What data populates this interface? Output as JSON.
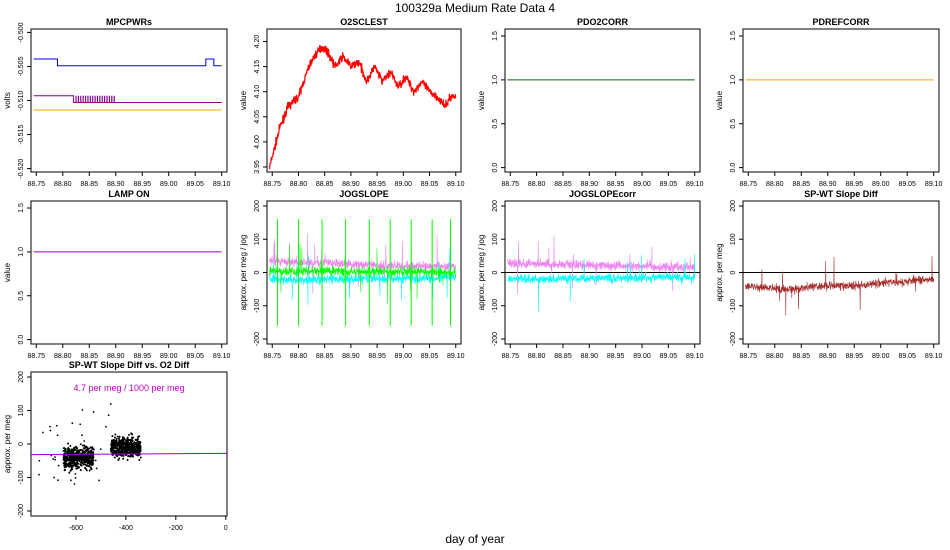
{
  "page": {
    "title": "100329a   Medium Rate Data 4",
    "xlabel": "day of year"
  },
  "colors": {
    "blue": "#0000ff",
    "purple": "#8b008b",
    "orange": "#ffa500",
    "red": "#ff0000",
    "darkgreen": "#006400",
    "darkviolet": "#9400d3",
    "violet": "#ee82ee",
    "cyan": "#00ffff",
    "green": "#00ff00",
    "brown": "#a52a2a",
    "magenta": "#c000c0"
  },
  "chart_data": [
    {
      "id": "mpcpwrs",
      "type": "line",
      "title": "MPCPWRs",
      "ylabel": "volts",
      "xlim": [
        88.74,
        89.11
      ],
      "ylim": [
        -0.5205,
        -0.4995
      ],
      "xticks": [
        "88.75",
        "88.80",
        "88.85",
        "88.90",
        "88.95",
        "89.00",
        "89.05",
        "89.10"
      ],
      "yticks": [
        "-0.520",
        "-0.515",
        "-0.510",
        "-0.505",
        "-0.500"
      ],
      "series": [
        {
          "name": "blue",
          "color": "blue",
          "x": [
            88.745,
            88.79,
            88.79,
            88.795,
            88.795,
            89.07,
            89.07,
            89.085,
            89.085,
            89.1
          ],
          "y": [
            -0.5039,
            -0.5039,
            -0.5049,
            -0.5049,
            -0.5049,
            -0.5049,
            -0.5039,
            -0.5039,
            -0.5049,
            -0.5049
          ]
        },
        {
          "name": "purple",
          "color": "purple",
          "x": [
            88.745,
            88.82,
            88.82,
            88.905,
            88.905,
            89.1
          ],
          "y": [
            -0.5093,
            -0.5093,
            -0.5103,
            -0.5103,
            -0.5103,
            -0.5103
          ]
        },
        {
          "name": "orange",
          "color": "orange",
          "x": [
            88.745,
            89.1
          ],
          "y": [
            -0.5114,
            -0.5114
          ]
        }
      ]
    },
    {
      "id": "o2sclest",
      "type": "line",
      "title": "O2SCLEST",
      "ylabel": "value",
      "xlim": [
        88.74,
        89.11
      ],
      "ylim": [
        3.94,
        4.225
      ],
      "xticks": [
        "88.75",
        "88.80",
        "88.85",
        "88.90",
        "88.95",
        "89.00",
        "89.05",
        "89.10"
      ],
      "yticks": [
        "3.95",
        "4.00",
        "4.05",
        "4.10",
        "4.15",
        "4.20"
      ],
      "series": [
        {
          "name": "o2",
          "color": "red",
          "x": [
            88.745,
            88.755,
            88.765,
            88.78,
            88.8,
            88.82,
            88.83,
            88.845,
            88.855,
            88.87,
            88.885,
            88.9,
            88.915,
            88.93,
            88.945,
            88.96,
            88.975,
            88.99,
            89.005,
            89.02,
            89.035,
            89.05,
            89.065,
            89.08,
            89.09,
            89.1
          ],
          "y": [
            3.95,
            3.99,
            4.03,
            4.07,
            4.09,
            4.15,
            4.17,
            4.19,
            4.18,
            4.15,
            4.17,
            4.15,
            4.16,
            4.12,
            4.15,
            4.12,
            4.14,
            4.11,
            4.13,
            4.1,
            4.12,
            4.1,
            4.09,
            4.07,
            4.09,
            4.09
          ]
        }
      ]
    },
    {
      "id": "pdo2corr",
      "type": "line",
      "title": "PDO2CORR",
      "ylabel": "value",
      "xlim": [
        88.74,
        89.11
      ],
      "ylim": [
        -0.05,
        1.58
      ],
      "xticks": [
        "88.75",
        "88.80",
        "88.85",
        "88.90",
        "88.95",
        "89.00",
        "89.05",
        "89.10"
      ],
      "yticks": [
        "0.0",
        "0.5",
        "1.0",
        "1.5"
      ],
      "series": [
        {
          "name": "pdo2corr",
          "color": "darkgreen",
          "x": [
            88.745,
            89.1
          ],
          "y": [
            1.0,
            1.0
          ]
        }
      ]
    },
    {
      "id": "pdrefcorr",
      "type": "line",
      "title": "PDREFCORR",
      "ylabel": "value",
      "xlim": [
        88.74,
        89.11
      ],
      "ylim": [
        -0.05,
        1.58
      ],
      "xticks": [
        "88.75",
        "88.80",
        "88.85",
        "88.90",
        "88.95",
        "89.00",
        "89.05",
        "89.10"
      ],
      "yticks": [
        "0.0",
        "0.5",
        "1.0",
        "1.5"
      ],
      "series": [
        {
          "name": "pdrefcorr",
          "color": "orange",
          "x": [
            88.745,
            89.1
          ],
          "y": [
            1.0,
            1.0
          ]
        }
      ]
    },
    {
      "id": "lampon",
      "type": "line",
      "title": "LAMP ON",
      "ylabel": "value",
      "xlim": [
        88.74,
        89.11
      ],
      "ylim": [
        -0.05,
        1.58
      ],
      "xticks": [
        "88.75",
        "88.80",
        "88.85",
        "88.90",
        "88.95",
        "89.00",
        "89.05",
        "89.10"
      ],
      "yticks": [
        "0.0",
        "0.5",
        "1.0",
        "1.5"
      ],
      "series": [
        {
          "name": "lampon",
          "color": "darkviolet",
          "x": [
            88.745,
            89.1
          ],
          "y": [
            1.0,
            1.0
          ]
        }
      ]
    },
    {
      "id": "jogslope",
      "type": "line",
      "title": "JOGSLOPE",
      "ylabel": "approx. per meg / jog",
      "xlim": [
        88.74,
        89.11
      ],
      "ylim": [
        -215,
        215
      ],
      "xticks": [
        "88.75",
        "88.80",
        "88.85",
        "88.90",
        "88.95",
        "89.00",
        "89.05",
        "89.10"
      ],
      "yticks": [
        "-200",
        "-100",
        "0",
        "100",
        "200"
      ],
      "series": [
        {
          "name": "violet",
          "color": "violet",
          "x": [
            88.745,
            88.8,
            88.85,
            88.9,
            88.95,
            89.0,
            89.05,
            89.1
          ],
          "y": [
            38,
            30,
            30,
            25,
            22,
            20,
            20,
            18
          ]
        },
        {
          "name": "cyan",
          "color": "cyan",
          "x": [
            88.745,
            88.8,
            88.85,
            88.9,
            88.95,
            89.0,
            89.05,
            89.1
          ],
          "y": [
            -20,
            -22,
            -20,
            -20,
            -18,
            -18,
            -15,
            -15
          ]
        },
        {
          "name": "green",
          "color": "green",
          "x": [
            88.745,
            88.8,
            88.85,
            88.9,
            88.95,
            89.0,
            89.05,
            89.1
          ],
          "y": [
            5,
            4,
            5,
            3,
            2,
            2,
            1,
            0
          ]
        }
      ]
    },
    {
      "id": "jogslopecorr",
      "type": "line",
      "title": "JOGSLOPEcorr",
      "ylabel": "approx. per meg / jog",
      "xlim": [
        88.74,
        89.11
      ],
      "ylim": [
        -215,
        215
      ],
      "xticks": [
        "88.75",
        "88.80",
        "88.85",
        "88.90",
        "88.95",
        "89.00",
        "89.05",
        "89.10"
      ],
      "yticks": [
        "-200",
        "-100",
        "0",
        "100",
        "200"
      ],
      "hline": 0,
      "series": [
        {
          "name": "violet",
          "color": "violet",
          "x": [
            88.745,
            88.8,
            88.85,
            88.9,
            88.95,
            89.0,
            89.05,
            89.1
          ],
          "y": [
            30,
            25,
            25,
            22,
            20,
            18,
            18,
            16
          ]
        },
        {
          "name": "cyan",
          "color": "cyan",
          "x": [
            88.745,
            88.8,
            88.85,
            88.9,
            88.95,
            89.0,
            89.05,
            89.1
          ],
          "y": [
            -20,
            -20,
            -18,
            -18,
            -16,
            -15,
            -14,
            -14
          ]
        }
      ]
    },
    {
      "id": "spwtslopediff",
      "type": "line",
      "title": "SP-WT Slope Diff",
      "ylabel": "approx. per meg",
      "xlim": [
        88.74,
        89.11
      ],
      "ylim": [
        -215,
        215
      ],
      "xticks": [
        "88.75",
        "88.80",
        "88.85",
        "88.90",
        "88.95",
        "89.00",
        "89.05",
        "89.10"
      ],
      "yticks": [
        "-200",
        "-100",
        "0",
        "100",
        "200"
      ],
      "hline": 0,
      "series": [
        {
          "name": "diff",
          "color": "brown",
          "x": [
            88.745,
            88.78,
            88.82,
            88.86,
            88.9,
            88.94,
            88.98,
            89.02,
            89.06,
            89.1
          ],
          "y": [
            -40,
            -45,
            -50,
            -45,
            -40,
            -40,
            -35,
            -30,
            -25,
            -20
          ]
        }
      ]
    },
    {
      "id": "scatter",
      "type": "scatter",
      "title": "SP-WT Slope Diff vs. O2 Diff",
      "ylabel": "approx. per meg",
      "annotation": "4.7 per meg / 1000 per meg",
      "xlim": [
        -780,
        5
      ],
      "ylim": [
        -215,
        215
      ],
      "xticks": [
        "-600",
        "-400",
        "-200",
        "0"
      ],
      "yticks": [
        "-200",
        "-100",
        "0",
        "100",
        "200"
      ],
      "fit": {
        "slope": 0.0047,
        "intercept": -28
      },
      "clusters": [
        {
          "x": [
            -650,
            -530
          ],
          "y_center": -40,
          "spread": 22
        },
        {
          "x": [
            -460,
            -340
          ],
          "y_center": -10,
          "spread": 22
        }
      ]
    }
  ]
}
